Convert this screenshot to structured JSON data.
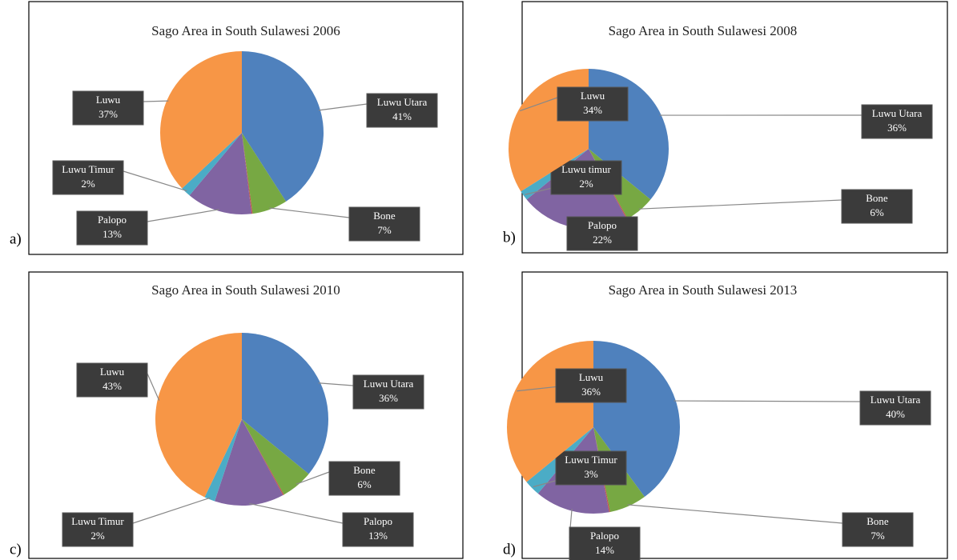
{
  "chart_data": [
    {
      "type": "pie",
      "panel_label": "a)",
      "title": "Sago Area in South Sulawesi 2006",
      "categories": [
        "Luwu Utara",
        "Bone",
        null,
        "Palopo",
        "Luwu Timur",
        "Luwu"
      ],
      "values": [
        41,
        7,
        0.2,
        13,
        2,
        37
      ],
      "value_labels": [
        "41%",
        "7%",
        null,
        "13%",
        "2%",
        "37%"
      ],
      "colors": [
        "#4f81bd",
        "#77a843",
        "#c0504d",
        "#8064a2",
        "#4bacc6",
        "#f79646"
      ]
    },
    {
      "type": "pie",
      "panel_label": "b)",
      "title": "Sago Area in South Sulawesi 2008",
      "categories": [
        "Luwu Utara",
        "Bone",
        null,
        "Palopo",
        "Luwu timur",
        "Luwu"
      ],
      "values": [
        36,
        6,
        0.2,
        22,
        2,
        34
      ],
      "value_labels": [
        "36%",
        "6%",
        null,
        "22%",
        "2%",
        "34%"
      ],
      "colors": [
        "#4f81bd",
        "#77a843",
        "#c0504d",
        "#8064a2",
        "#4bacc6",
        "#f79646"
      ]
    },
    {
      "type": "pie",
      "panel_label": "c)",
      "title": "Sago Area in South Sulawesi 2010",
      "categories": [
        "Luwu Utara",
        "Bone",
        null,
        "Palopo",
        "Luwu Timur",
        "Luwu"
      ],
      "values": [
        36,
        6,
        0.2,
        13,
        2,
        43
      ],
      "value_labels": [
        "36%",
        "6%",
        null,
        "13%",
        "2%",
        "43%"
      ],
      "colors": [
        "#4f81bd",
        "#77a843",
        "#c0504d",
        "#8064a2",
        "#4bacc6",
        "#f79646"
      ]
    },
    {
      "type": "pie",
      "panel_label": "d)",
      "title": "Sago Area in South Sulawesi 2013",
      "categories": [
        "Luwu Utara",
        "Bone",
        null,
        "Palopo",
        "Luwu Timur",
        "Luwu"
      ],
      "values": [
        40,
        7,
        0.2,
        14,
        3,
        36
      ],
      "value_labels": [
        "40%",
        "7%",
        null,
        "14%",
        "3%",
        "36%"
      ],
      "colors": [
        "#4f81bd",
        "#77a843",
        "#c0504d",
        "#8064a2",
        "#4bacc6",
        "#f79646"
      ]
    }
  ]
}
